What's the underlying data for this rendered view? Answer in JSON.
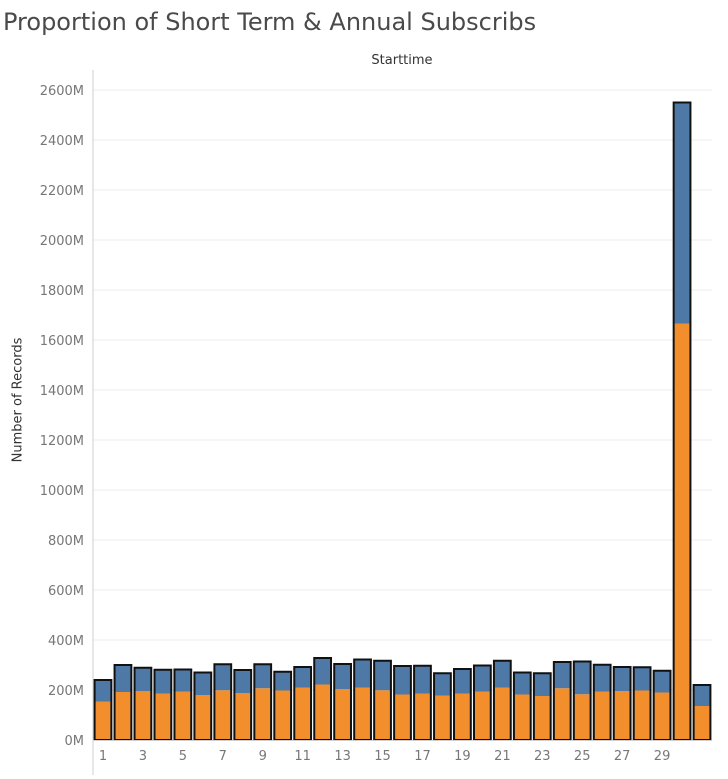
{
  "title": "Proportion of Short Term & Annual Subscribs",
  "chart_data": {
    "type": "bar",
    "stacked": true,
    "title": "Proportion of Short Term & Annual Subscribs",
    "column_header": "Starttime",
    "xlabel": "",
    "ylabel": "Number of Records",
    "ylim": [
      0,
      2650
    ],
    "y_unit": "M",
    "y_ticks": [
      "0M",
      "200M",
      "400M",
      "600M",
      "800M",
      "1000M",
      "1200M",
      "1400M",
      "1600M",
      "1800M",
      "2000M",
      "2200M",
      "2400M",
      "2600M"
    ],
    "x_tick_labels": [
      "1",
      "3",
      "5",
      "7",
      "9",
      "11",
      "13",
      "15",
      "17",
      "19",
      "21",
      "23",
      "25",
      "27",
      "29"
    ],
    "categories": [
      "1",
      "2",
      "3",
      "4",
      "5",
      "6",
      "7",
      "8",
      "9",
      "10",
      "11",
      "12",
      "13",
      "14",
      "15",
      "16",
      "17",
      "18",
      "19",
      "20",
      "21",
      "22",
      "23",
      "24",
      "25",
      "26",
      "27",
      "28",
      "29",
      "30",
      "31"
    ],
    "series": [
      {
        "color": "#f28e2b",
        "values": [
          153,
          192,
          195,
          186,
          193,
          180,
          199,
          187,
          207,
          198,
          210,
          222,
          203,
          209,
          199,
          182,
          186,
          177,
          186,
          194,
          210,
          182,
          176,
          207,
          183,
          193,
          196,
          198,
          190,
          1665,
          136
        ]
      },
      {
        "color": "#4e79a7",
        "values": [
          87,
          108,
          94,
          95,
          89,
          90,
          104,
          93,
          96,
          75,
          82,
          106,
          101,
          113,
          118,
          114,
          111,
          90,
          98,
          104,
          107,
          88,
          91,
          105,
          131,
          108,
          96,
          93,
          87,
          885,
          84
        ]
      }
    ],
    "grid": "horizontal",
    "legend": "none"
  }
}
